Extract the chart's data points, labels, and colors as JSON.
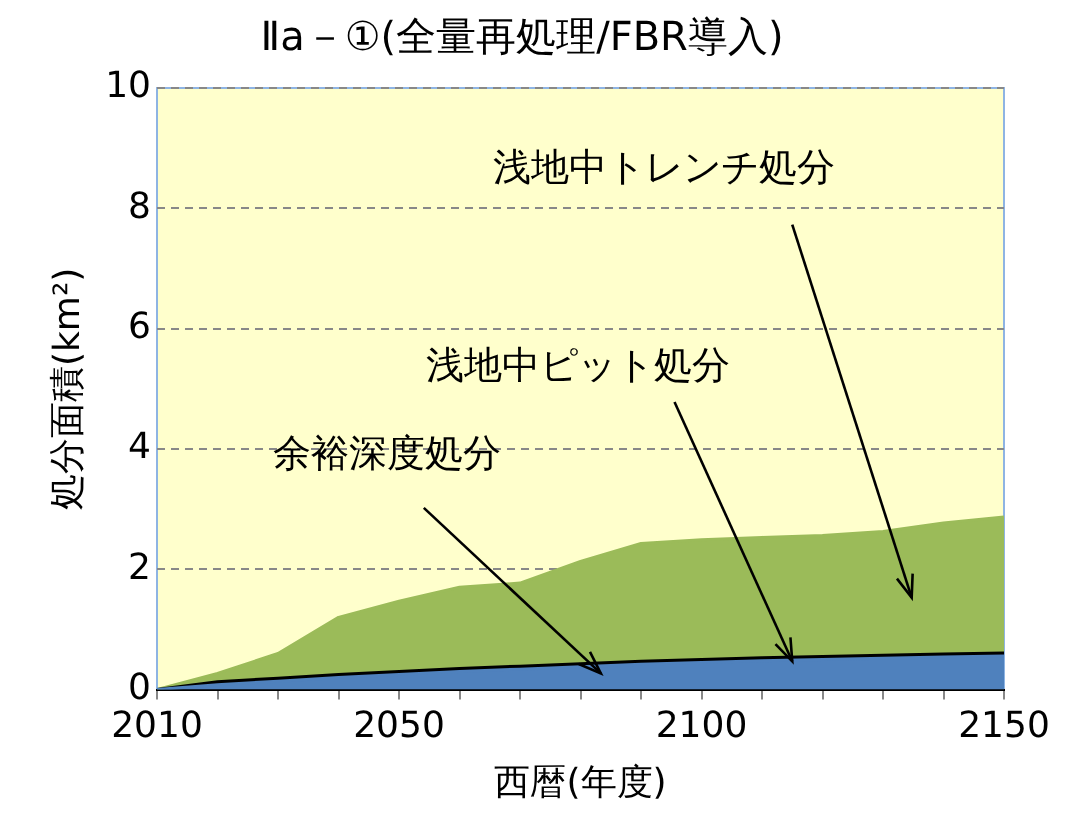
{
  "chart_data": {
    "type": "area",
    "title": "Ⅱa－①(全量再処理/FBR導入)",
    "xlabel": "西暦(年度)",
    "ylabel": "処分面積(km²)",
    "x": [
      2010,
      2020,
      2030,
      2040,
      2050,
      2060,
      2070,
      2080,
      2090,
      2100,
      2110,
      2120,
      2130,
      2140,
      2150
    ],
    "stacked": true,
    "series": [
      {
        "name": "余裕深度処分",
        "color": "#4f81bd",
        "values": [
          0,
          0.08,
          0.14,
          0.2,
          0.25,
          0.3,
          0.34,
          0.38,
          0.42,
          0.45,
          0.48,
          0.5,
          0.52,
          0.54,
          0.56
        ]
      },
      {
        "name": "浅地中ピット処分",
        "color": "#000000",
        "values": [
          0,
          0.05,
          0.05,
          0.05,
          0.05,
          0.05,
          0.05,
          0.05,
          0.05,
          0.05,
          0.05,
          0.05,
          0.05,
          0.05,
          0.05
        ]
      },
      {
        "name": "浅地中トレンチ処分",
        "color": "#9bbb59",
        "values": [
          0,
          0.14,
          0.41,
          0.95,
          1.17,
          1.35,
          1.38,
          1.7,
          1.96,
          1.99,
          2.0,
          2.01,
          2.06,
          2.18,
          2.26
        ]
      }
    ],
    "xlim": [
      2010,
      2150
    ],
    "xticks": [
      2010,
      {
        "value": 2020,
        "label": null
      },
      {
        "value": 2030,
        "label": null
      },
      {
        "value": 2040,
        "label": null
      },
      2050,
      {
        "value": 2060,
        "label": null
      },
      {
        "value": 2070,
        "label": null
      },
      {
        "value": 2080,
        "label": null
      },
      {
        "value": 2090,
        "label": null
      },
      2100,
      {
        "value": 2110,
        "label": null
      },
      {
        "value": 2120,
        "label": null
      },
      {
        "value": 2130,
        "label": null
      },
      {
        "value": 2140,
        "label": null
      },
      2150
    ],
    "ylim": [
      0,
      10
    ],
    "yticks": [
      0,
      2,
      4,
      6,
      8,
      10
    ],
    "grid": "y",
    "legend": false
  }
}
